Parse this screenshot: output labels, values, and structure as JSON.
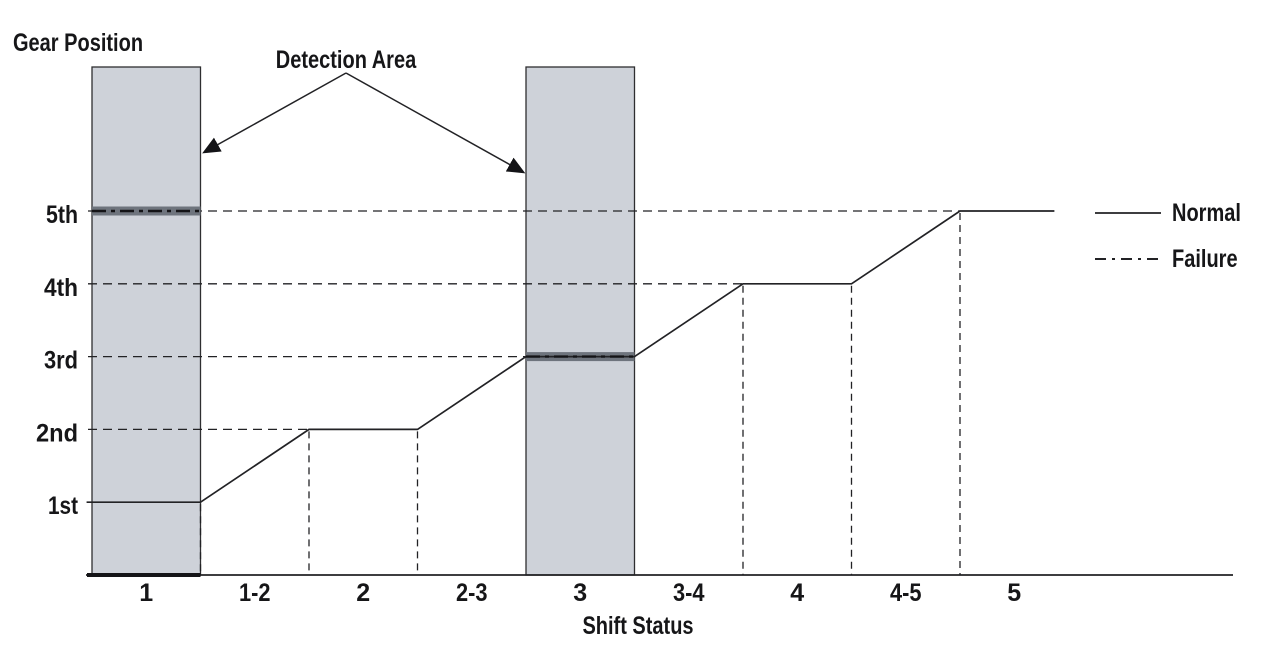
{
  "y_axis_title": "Gear Position",
  "x_axis_title": "Shift Status",
  "annotation_label": "Detection Area",
  "legend": {
    "position": "right",
    "items": [
      {
        "label": "Normal",
        "style": "solid"
      },
      {
        "label": "Failure",
        "style": "dashdot"
      }
    ]
  },
  "colors": {
    "background": "#ffffff",
    "band_fill": "#ced2d9",
    "band_border": "#2e2e30",
    "failure_strip": "#6e747d",
    "line": "#222225",
    "failure_line": "#141417",
    "text": "#161618"
  },
  "chart_data": {
    "type": "line",
    "title": "",
    "xlabel": "Shift Status",
    "ylabel": "Gear Position",
    "x_categories": [
      "1",
      "1-2",
      "2",
      "2-3",
      "3",
      "3-4",
      "4",
      "4-5",
      "5"
    ],
    "y_categories": [
      "1st",
      "2nd",
      "3rd",
      "4th",
      "5th"
    ],
    "grid": "dashed-partial",
    "legend_position": "right",
    "series": [
      {
        "name": "Normal",
        "style": "solid",
        "units_note": "x in shift-status boundary units (0 = left edge of status 1, 1 unit = one status column); y = gear number",
        "points": [
          [
            -0.05,
            1
          ],
          [
            1,
            1
          ],
          [
            2,
            2
          ],
          [
            3,
            2
          ],
          [
            4,
            3
          ],
          [
            5,
            3
          ],
          [
            6,
            4
          ],
          [
            7,
            4
          ],
          [
            8,
            5
          ],
          [
            8.87,
            5
          ]
        ]
      },
      {
        "name": "Failure",
        "style": "dashdot",
        "segments": [
          {
            "x_span": [
              0,
              1
            ],
            "gear": 5
          },
          {
            "x_span": [
              4,
              5
            ],
            "gear": 3
          }
        ]
      }
    ],
    "detection_areas": [
      {
        "x_category": "1",
        "span": [
          0,
          1
        ],
        "failure_gear": 5,
        "failure_gear_label": "5th",
        "thick_bottom_edge": true
      },
      {
        "x_category": "3",
        "span": [
          4,
          5
        ],
        "failure_gear": 3,
        "failure_gear_label": "3rd",
        "thick_bottom_edge": false
      }
    ],
    "gridlines": [
      {
        "gear": 2,
        "to_boundary": 2
      },
      {
        "gear": 3,
        "to_boundary": 4
      },
      {
        "gear": 4,
        "to_boundary": 6
      },
      {
        "gear": 5,
        "to_boundary": 8
      }
    ],
    "vertical_guides": [
      {
        "boundary": 1,
        "from_gear": 1
      },
      {
        "boundary": 2,
        "from_gear": 2
      },
      {
        "boundary": 3,
        "from_gear": 2
      },
      {
        "boundary": 6,
        "from_gear": 4
      },
      {
        "boundary": 7,
        "from_gear": 4
      },
      {
        "boundary": 8,
        "from_gear": 5
      }
    ]
  }
}
